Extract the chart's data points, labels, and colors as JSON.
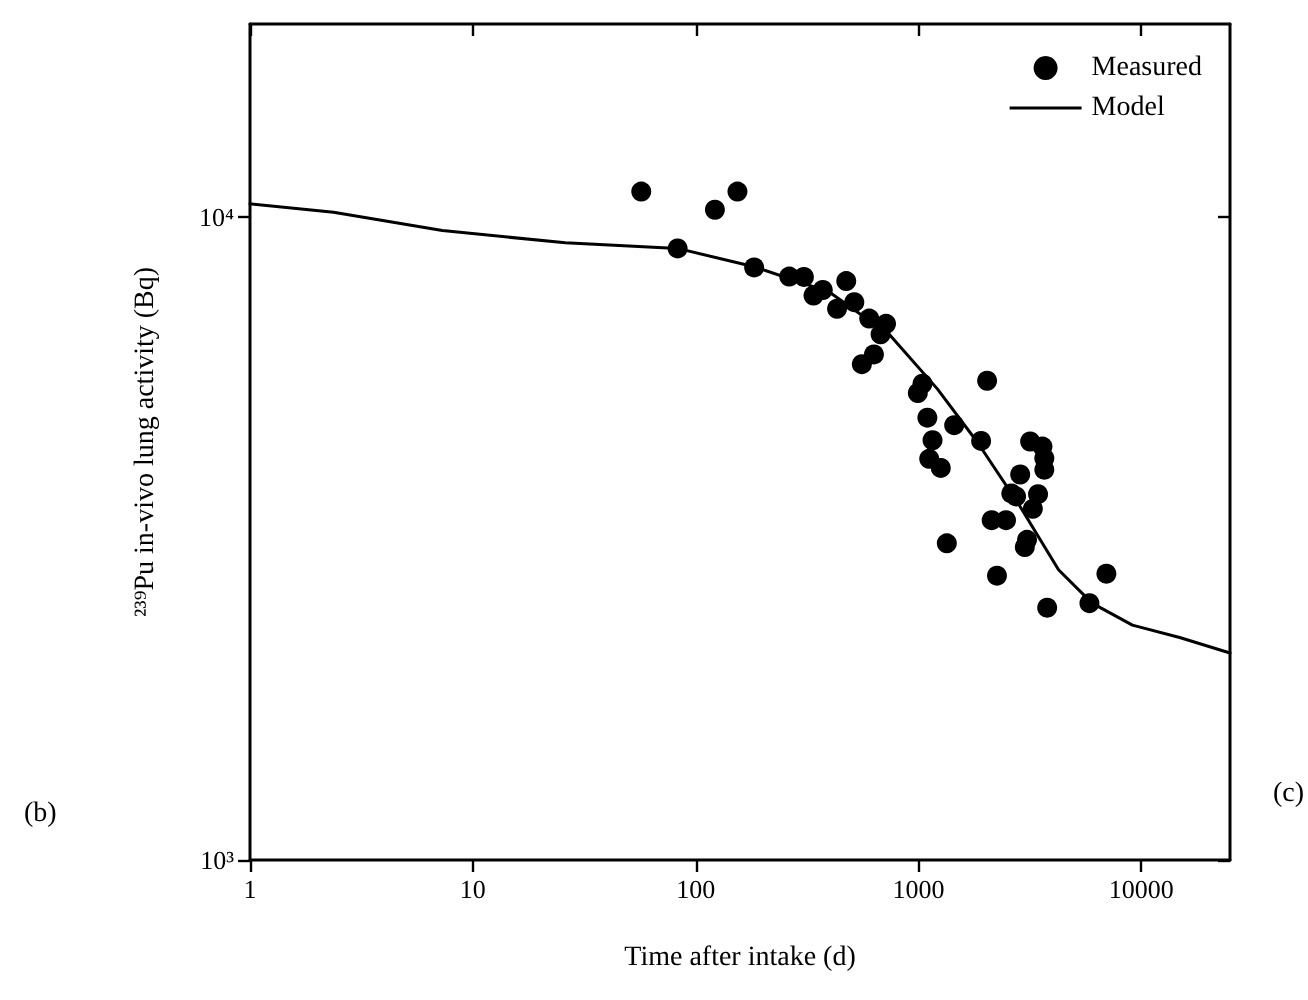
{
  "chart_data": {
    "type": "scatter",
    "xlabel": "Time after intake (d)",
    "ylabel": "²³⁹Pu in-vivo lung activity (Bq)",
    "log": "xy",
    "xlim": [
      1,
      25000
    ],
    "ylim": [
      1000,
      20000
    ],
    "xticks": [
      1,
      10,
      100,
      1000,
      10000
    ],
    "yticks": [
      {
        "value": 1000,
        "label": "10³"
      },
      {
        "value": 10000,
        "label": "10⁴"
      }
    ],
    "grid": false,
    "legend": "top right",
    "marker": "circle",
    "annotations": [
      "(b)",
      "(c)"
    ],
    "series": [
      {
        "name": "Measured",
        "color": "#000000",
        "x": [
          57,
          122,
          154,
          83,
          183,
          263,
          306,
          372,
          338,
          474,
          431,
          515,
          601,
          715,
          676,
          631,
          557,
          1042,
          993,
          2032,
          1096,
          1446,
          1156,
          1910,
          1117,
          1259,
          3170,
          3600,
          3670,
          3670,
          2860,
          2610,
          2740,
          3440,
          3260,
          2130,
          2470,
          3000,
          3070,
          1340,
          2250,
          6970,
          3780,
          5850
        ],
        "values": [
          10970,
          10280,
          10970,
          8950,
          8360,
          8090,
          8080,
          7710,
          7560,
          7960,
          7210,
          7380,
          6960,
          6830,
          6580,
          6120,
          5910,
          5510,
          5330,
          5570,
          4880,
          4750,
          4500,
          4490,
          4210,
          4075,
          4480,
          4400,
          4220,
          4050,
          3980,
          3720,
          3680,
          3710,
          3520,
          3380,
          3380,
          3070,
          3150,
          3110,
          2770,
          2790,
          2470,
          2510
        ]
      },
      {
        "name": "Model",
        "type": "line",
        "color": "#000000",
        "line_style": "solid",
        "marker": "none",
        "x": [
          1,
          2.37,
          7.3,
          26,
          83,
          183,
          399,
          747,
          1215,
          1845,
          2800,
          4250,
          6010,
          9120,
          14860,
          25000
        ],
        "values": [
          10500,
          10190,
          9540,
          9130,
          8950,
          8380,
          7650,
          6550,
          5410,
          4460,
          3590,
          2830,
          2510,
          2320,
          2220,
          2100
        ]
      }
    ]
  }
}
